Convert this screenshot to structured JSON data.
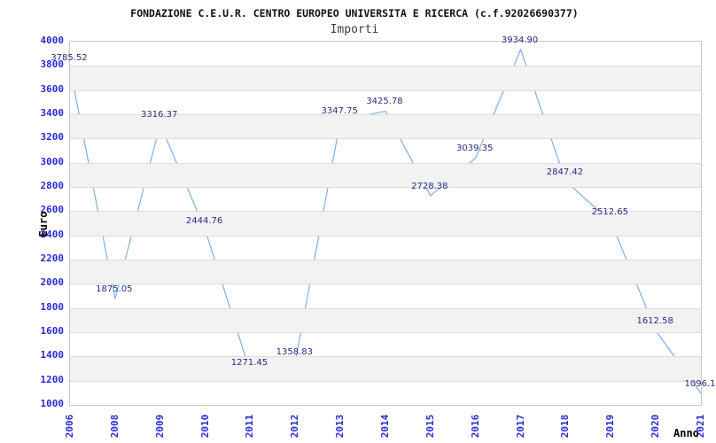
{
  "chart": {
    "title": "FONDAZIONE C.E.U.R. CENTRO EUROPEO UNIVERSITA E RICERCA (c.f.92026690377)",
    "subtitle": "Importi",
    "colors": {
      "line": "#7dafe6",
      "axis_text": "#2a2ad0",
      "data_label": "#2a2a80",
      "band_fill": "#f2f2f2",
      "grid_line": "#dcdcdc",
      "plot_border": "#c6c6c6",
      "title_text": "#111111",
      "subtitle_text": "#3c3c3c"
    }
  },
  "chart_data": {
    "type": "line",
    "x": [
      "2006",
      "2008",
      "2009",
      "2010",
      "2011",
      "2012",
      "2013",
      "2014",
      "2015",
      "2016",
      "2017",
      "2018",
      "2019",
      "2020",
      "2021"
    ],
    "values": [
      3785.52,
      1875.05,
      3316.37,
      2444.76,
      1271.45,
      1358.83,
      3347.75,
      3425.78,
      2728.38,
      3039.35,
      3934.9,
      2847.42,
      2512.65,
      1612.58,
      1096.1
    ],
    "point_labels": [
      "3785.52",
      "1875.05",
      "3316.37",
      "2444.76",
      "1271.45",
      "1358.83",
      "3347.75",
      "3425.78",
      "2728.38",
      "3039.35",
      "3934.90",
      "2847.42",
      "2512.65",
      "1612.58",
      "1096.1"
    ],
    "title": "Importi",
    "xlabel": "Anno",
    "ylabel": "Euro",
    "ylim": [
      1000,
      4000
    ],
    "ytick_step": 200,
    "yticks": [
      1000,
      1200,
      1400,
      1600,
      1800,
      2000,
      2200,
      2400,
      2600,
      2800,
      3000,
      3200,
      3400,
      3600,
      3800,
      4000
    ],
    "grid": "alternating-horizontal-bands",
    "legend": "none",
    "markers": "none"
  }
}
